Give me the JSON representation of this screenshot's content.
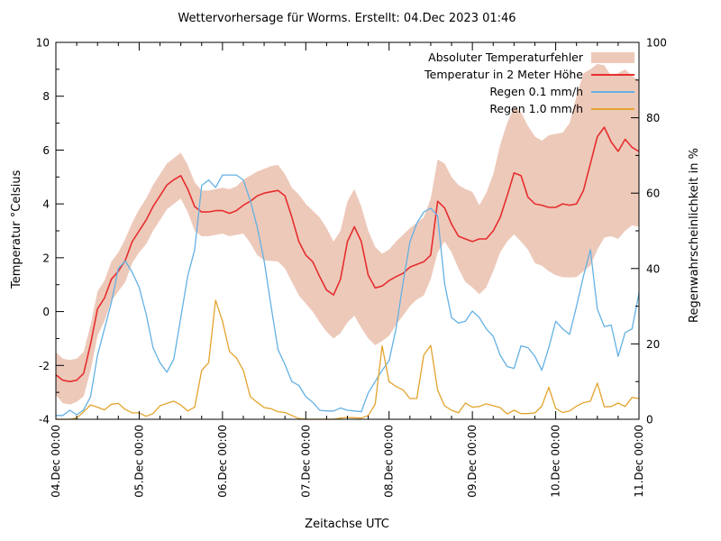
{
  "title": "Wettervorhersage für Worms. Erstellt: 04.Dec 2023 01:46",
  "chart_data": {
    "type": "line",
    "title": "Wettervorhersage für Worms. Erstellt: 04.Dec 2023 01:46",
    "xlabel": "Zeitachse UTC",
    "ylabel_left": "Temperatur °Celsius",
    "ylabel_right": "Regenwahrscheinlichkeit in %",
    "legend_position": "top-right-inside",
    "grid": false,
    "background": "#ffffff",
    "axis_color": "#000000",
    "x_unit": "hours since 04.Dec 00:00 UTC",
    "x_total_hours": 168,
    "x_step_hours": 2,
    "x_minor_tick_hours": 6,
    "x_ticks": [
      {
        "hour": 0,
        "label": "04.Dec 00:00"
      },
      {
        "hour": 24,
        "label": "05.Dec 00:00"
      },
      {
        "hour": 48,
        "label": "06.Dec 00:00"
      },
      {
        "hour": 72,
        "label": "07.Dec 00:00"
      },
      {
        "hour": 96,
        "label": "08.Dec 00:00"
      },
      {
        "hour": 120,
        "label": "09.Dec 00:00"
      },
      {
        "hour": 144,
        "label": "10.Dec 00:00"
      },
      {
        "hour": 168,
        "label": "11.Dec 00:00"
      }
    ],
    "y_left": {
      "min": -4,
      "max": 10,
      "ticks": [
        -4,
        -2,
        0,
        2,
        4,
        6,
        8,
        10
      ],
      "minor_step": 1
    },
    "y_right": {
      "min": 0,
      "max": 100,
      "ticks": [
        0,
        20,
        40,
        60,
        80,
        100
      ],
      "minor_step": 10
    },
    "series": [
      {
        "name": "Absoluter Temperaturfehler",
        "kind": "band",
        "axis": "left",
        "color": "#edc9ba",
        "low": [
          -3.1,
          -3.4,
          -3.45,
          -3.35,
          -3.15,
          -2.2,
          -0.9,
          -0.35,
          0.4,
          0.75,
          1.1,
          1.8,
          2.2,
          2.5,
          3,
          3.4,
          3.8,
          4,
          4.2,
          3.7,
          3,
          2.8,
          2.8,
          2.85,
          2.9,
          2.8,
          2.85,
          2.9,
          2.55,
          2.1,
          1.9,
          1.88,
          1.86,
          1.6,
          1.1,
          0.6,
          0.3,
          0,
          -0.4,
          -0.75,
          -1,
          -0.8,
          -0.4,
          -0.15,
          -0.6,
          -1,
          -1.25,
          -1.1,
          -0.9,
          -0.5,
          -0.15,
          0.2,
          0.45,
          0.6,
          1.2,
          2.2,
          2.6,
          2.2,
          1.6,
          1.1,
          0.9,
          0.65,
          0.9,
          1.5,
          2.2,
          2.6,
          2.87,
          2.6,
          2.3,
          1.8,
          1.7,
          1.5,
          1.35,
          1.28,
          1.27,
          1.28,
          1.5,
          1.7,
          2.3,
          2.75,
          2.8,
          2.7,
          3,
          3.2,
          3.15
        ],
        "high": [
          -1.5,
          -1.75,
          -1.8,
          -1.75,
          -1.5,
          -0.5,
          0.75,
          1.15,
          1.85,
          2.2,
          2.7,
          3.3,
          3.8,
          4.2,
          4.7,
          5.1,
          5.5,
          5.7,
          5.9,
          5.45,
          4.8,
          4.5,
          4.5,
          4.55,
          4.6,
          4.55,
          4.65,
          4.9,
          5.05,
          5.2,
          5.3,
          5.4,
          5.45,
          5.1,
          4.6,
          4.35,
          4,
          3.75,
          3.5,
          3.1,
          2.6,
          3,
          4.1,
          4.55,
          3.9,
          3,
          2.4,
          2.15,
          2.3,
          2.6,
          2.85,
          3.1,
          3.3,
          3.5,
          4.2,
          5.65,
          5.5,
          5,
          4.7,
          4.55,
          4.45,
          3.95,
          4.4,
          5.1,
          6.2,
          7,
          7.6,
          7.4,
          6.9,
          6.5,
          6.35,
          6.55,
          6.6,
          6.65,
          7,
          8,
          8.85,
          9,
          9.2,
          9.15,
          8.75,
          8.85,
          9,
          8.75,
          8.6
        ]
      },
      {
        "name": "Temperatur in 2 Meter Höhe",
        "kind": "line",
        "axis": "left",
        "color": "#e62e2e",
        "width": 1.6,
        "values": [
          -2.35,
          -2.55,
          -2.6,
          -2.55,
          -2.3,
          -1.2,
          0.1,
          0.5,
          1.2,
          1.5,
          1.9,
          2.6,
          3,
          3.4,
          3.9,
          4.3,
          4.7,
          4.9,
          5.05,
          4.55,
          3.9,
          3.7,
          3.7,
          3.75,
          3.75,
          3.65,
          3.75,
          3.95,
          4.1,
          4.3,
          4.4,
          4.45,
          4.5,
          4.3,
          3.5,
          2.6,
          2.1,
          1.85,
          1.3,
          0.8,
          0.62,
          1.2,
          2.6,
          3.15,
          2.6,
          1.35,
          0.88,
          0.95,
          1.15,
          1.3,
          1.42,
          1.65,
          1.75,
          1.85,
          2.1,
          4.1,
          3.85,
          3.25,
          2.8,
          2.7,
          2.6,
          2.7,
          2.7,
          3,
          3.5,
          4.3,
          5.15,
          5.05,
          4.25,
          4,
          3.95,
          3.87,
          3.87,
          4,
          3.95,
          4,
          4.5,
          5.5,
          6.5,
          6.85,
          6.3,
          5.95,
          6.4,
          6.1,
          5.95
        ]
      },
      {
        "name": "Regen 0.1 mm/h",
        "kind": "line",
        "axis": "right",
        "color": "#64b1e3",
        "width": 1.3,
        "values": [
          1,
          1,
          2.4,
          1.2,
          2.5,
          6,
          17,
          24,
          31,
          40,
          42,
          39,
          35,
          28,
          19,
          15,
          12.5,
          16,
          27,
          38,
          45,
          62,
          63.5,
          61.5,
          64.8,
          64.8,
          64.8,
          63.5,
          58,
          51,
          42,
          30,
          18.5,
          14.5,
          10,
          9,
          6,
          4.5,
          2.4,
          2.2,
          2.2,
          3,
          2.4,
          2.2,
          2,
          7,
          10,
          13,
          15.5,
          24,
          36,
          47,
          52,
          55,
          56,
          54,
          36,
          27,
          25.5,
          26,
          28.7,
          27,
          24,
          22,
          17,
          14,
          13.5,
          19.5,
          19,
          16.7,
          13,
          19,
          26,
          24,
          22.5,
          30,
          38,
          45,
          29.2,
          24.6,
          25,
          16.7,
          23,
          24,
          33.5
        ]
      },
      {
        "name": "Regen 1.0 mm/h",
        "kind": "line",
        "axis": "right",
        "color": "#e3a32d",
        "width": 1.3,
        "values": [
          0,
          0,
          0,
          0.3,
          2,
          3.8,
          3.2,
          2.5,
          4,
          4.2,
          2.6,
          1.7,
          1.7,
          0.8,
          1.5,
          3.6,
          4.2,
          4.8,
          3.8,
          2.2,
          3.2,
          13,
          15,
          31.6,
          26,
          18,
          16.3,
          13,
          6,
          4.5,
          3.1,
          2.8,
          2,
          1.8,
          1,
          0.2,
          0,
          0,
          0,
          0,
          0,
          0.3,
          0.5,
          0.4,
          0.3,
          1,
          4,
          19.5,
          10,
          8.7,
          7.8,
          5.5,
          5.5,
          17,
          19.6,
          7.7,
          3.6,
          2.4,
          1.7,
          4.3,
          3.2,
          3.4,
          4.1,
          3.6,
          3.1,
          1.4,
          2.4,
          1.5,
          1.5,
          1.7,
          3.5,
          8.5,
          2.9,
          1.8,
          2.2,
          3.5,
          4.4,
          4.8,
          9.6,
          3.3,
          3.4,
          4.3,
          3.4,
          5.8,
          5.5
        ]
      }
    ]
  }
}
